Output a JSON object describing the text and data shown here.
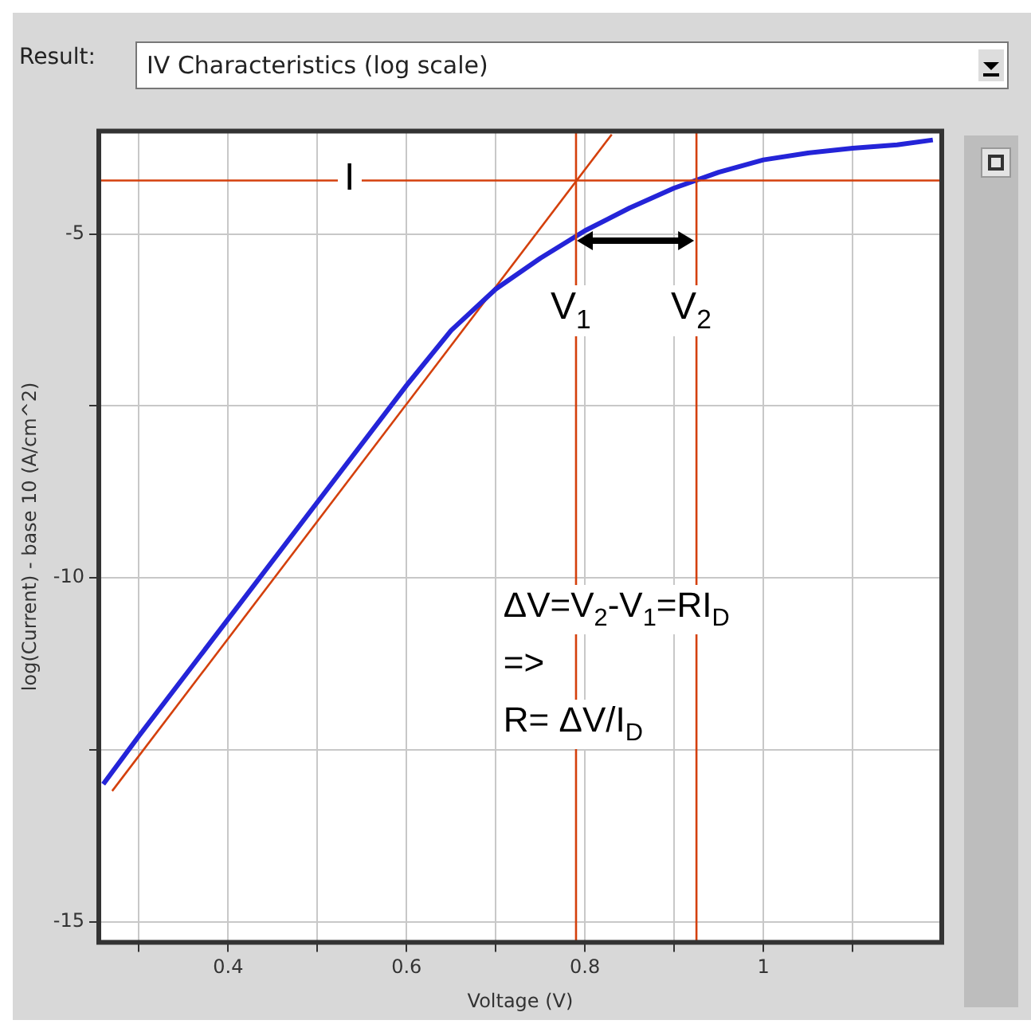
{
  "chart_data": {
    "type": "line",
    "title": "IV Characteristics (log scale)",
    "xlabel": "Voltage (V)",
    "ylabel": "log(Current) - base 10 (A/cm^2)",
    "x": [
      0.26,
      0.3,
      0.4,
      0.5,
      0.6,
      0.65,
      0.7,
      0.75,
      0.8,
      0.85,
      0.9,
      0.95,
      1.0,
      1.05,
      1.1,
      1.15,
      1.19
    ],
    "series": [
      {
        "color": "#2424d8",
        "values": [
          -13.0,
          -12.3,
          -10.6,
          -8.9,
          -7.2,
          -6.4,
          -5.8,
          -5.35,
          -4.95,
          -4.62,
          -4.33,
          -4.1,
          -3.92,
          -3.82,
          -3.75,
          -3.7,
          -3.63
        ]
      },
      {
        "type": "line",
        "color": "#d4400c",
        "x": [
          0.27,
          0.83
        ],
        "values": [
          -13.1,
          -3.55
        ]
      }
    ],
    "xlim": [
      0.255,
      1.2
    ],
    "ylim": [
      -15.3,
      -3.5
    ],
    "xticks": [
      {
        "value": 0.3,
        "label": null
      },
      0.4,
      {
        "value": 0.5,
        "label": null
      },
      0.6,
      {
        "value": 0.7,
        "label": null
      },
      0.8,
      {
        "value": 0.9,
        "label": null
      },
      1,
      {
        "value": 1.1,
        "label": null
      }
    ],
    "yticks": [
      -15,
      {
        "value": -12.5,
        "label": null
      },
      -10,
      {
        "value": -7.5,
        "label": null
      },
      -5
    ],
    "ref_lines": [
      {
        "axis": "y",
        "value": -4.22,
        "label": "I",
        "color": "#d4400c"
      },
      {
        "axis": "x",
        "value": 0.79,
        "label": "V$_{1}$",
        "color": "#d4400c"
      },
      {
        "axis": "x",
        "value": 0.925,
        "label": "V$_{2}$",
        "color": "#d4400c"
      }
    ],
    "annotations": [
      "Result:",
      "ΔV=V$_{2}$-V$_{1}$=RI$_{D}$",
      "=>",
      "R= ΔV/I$_{D}$"
    ],
    "grid": true,
    "legend": false,
    "marker": "none",
    "line_style": "solid"
  }
}
